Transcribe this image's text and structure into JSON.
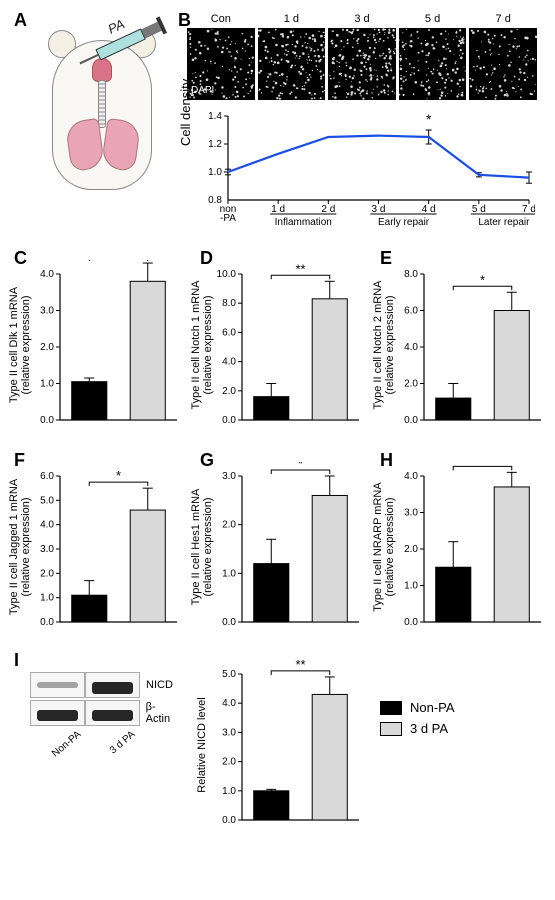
{
  "labels": {
    "A": "A",
    "B": "B",
    "C": "C",
    "D": "D",
    "E": "E",
    "F": "F",
    "G": "G",
    "H": "H",
    "I": "I"
  },
  "panelA": {
    "syringe_text": "PA",
    "body_color": "#f9f8f4",
    "lung_color": "#e9a5b5",
    "nose_color": "#d9738a"
  },
  "panelB": {
    "images": {
      "labels": [
        "Con",
        "1 d",
        "3 d",
        "5 d",
        "7 d"
      ],
      "dapi_label": "DAPI",
      "background": "#000000",
      "dot_color": "#d8d8d8",
      "dot_count": [
        120,
        170,
        200,
        150,
        110
      ]
    },
    "line": {
      "type": "line",
      "xlabels": [
        "non\n-PA",
        "1 d",
        "2 d",
        "3 d",
        "4 d",
        "5 d",
        "7 d"
      ],
      "x": [
        0,
        1,
        2,
        3,
        4,
        5,
        6
      ],
      "y": [
        1.0,
        1.13,
        1.25,
        1.26,
        1.25,
        0.98,
        0.96
      ],
      "err": [
        0.02,
        0,
        0,
        0,
        0.05,
        0.015,
        0.04
      ],
      "ylim": [
        0.8,
        1.4
      ],
      "ytick_step": 0.2,
      "line_color": "#1b4ee6",
      "line_width": 2.2,
      "ylabel": "Cell density",
      "sig": {
        "x": 4,
        "text": "*"
      },
      "phases": [
        {
          "label": "Inflammation",
          "from": 1,
          "to": 2
        },
        {
          "label": "Early repair",
          "from": 3,
          "to": 4
        },
        {
          "label": "Later repair",
          "from": 5,
          "to": 6
        }
      ]
    }
  },
  "bars_common": {
    "type": "bar",
    "categories": [
      "Non-PA",
      "3 d PA"
    ],
    "bar_colors": [
      "#000000",
      "#d9d9d9"
    ],
    "border": "#000000",
    "bar_width": 0.6,
    "label_fontsize": 11,
    "background": "#ffffff",
    "err_color": "#000000"
  },
  "panelC": {
    "ylabel": "Type II cell Dlk 1 mRNA\n(relative expression)",
    "values": [
      1.05,
      3.8
    ],
    "err": [
      0.1,
      0.5
    ],
    "ylim": [
      0,
      4
    ],
    "step": 1,
    "sig": "**"
  },
  "panelD": {
    "ylabel": "Type II cell Notch 1 mRNA\n(relative expression)",
    "values": [
      1.6,
      8.3
    ],
    "err": [
      0.9,
      1.2
    ],
    "ylim": [
      0,
      10
    ],
    "step": 2,
    "sig": "**"
  },
  "panelE": {
    "ylabel": "Type II cell Notch 2 mRNA\n(relative expression)",
    "values": [
      1.2,
      6.0
    ],
    "err": [
      0.8,
      1.0
    ],
    "ylim": [
      0,
      8
    ],
    "step": 2,
    "sig": "*"
  },
  "panelF": {
    "ylabel": "Type II cell Jagged 1 mRNA\n(relative expression)",
    "values": [
      1.1,
      4.6
    ],
    "err": [
      0.6,
      0.9
    ],
    "ylim": [
      0,
      6
    ],
    "step": 1,
    "sig": "*"
  },
  "panelG": {
    "ylabel": "Type II cell Hes1 mRNA\n(relative expression)",
    "values": [
      1.2,
      2.6
    ],
    "err": [
      0.5,
      0.4
    ],
    "ylim": [
      0,
      3
    ],
    "step": 1,
    "sig": "*"
  },
  "panelH": {
    "ylabel": "Type II cell NRARP mRNA\n(relative expression)",
    "values": [
      1.5,
      3.7
    ],
    "err": [
      0.7,
      0.4
    ],
    "ylim": [
      0,
      4
    ],
    "step": 1,
    "sig": "*"
  },
  "panelI": {
    "wb": {
      "lanes": [
        "Non-PA",
        "3 d PA"
      ],
      "rows": [
        {
          "label": "NICD",
          "intensity": [
            0.25,
            0.95
          ]
        },
        {
          "label": "β-Actin",
          "intensity": [
            0.9,
            0.9
          ]
        }
      ]
    },
    "bar": {
      "ylabel": "Relative NICD level",
      "values": [
        1.0,
        4.3
      ],
      "err": [
        0.05,
        0.6
      ],
      "ylim": [
        0,
        5
      ],
      "step": 1,
      "sig": "**"
    }
  },
  "legend": {
    "items": [
      {
        "label": "Non-PA",
        "color": "#000000"
      },
      {
        "label": "3 d PA",
        "color": "#d9d9d9"
      }
    ]
  }
}
